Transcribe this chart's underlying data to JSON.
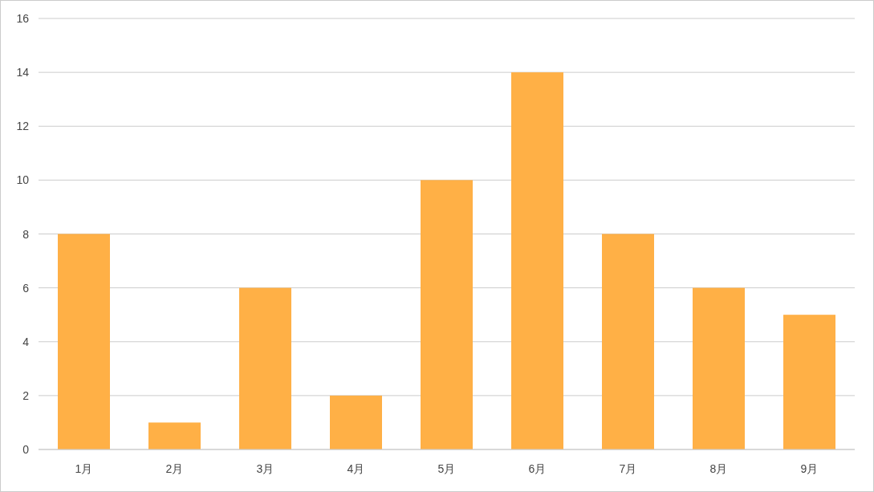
{
  "chart_data": {
    "type": "bar",
    "categories": [
      "1月",
      "2月",
      "3月",
      "4月",
      "5月",
      "6月",
      "7月",
      "8月",
      "9月"
    ],
    "values": [
      8,
      1,
      6,
      2,
      10,
      14,
      8,
      6,
      5
    ],
    "color": "#ffb046",
    "ylim": [
      0,
      16
    ],
    "yticks": [
      0,
      2,
      4,
      6,
      8,
      10,
      12,
      14,
      16
    ],
    "grid": "y"
  }
}
